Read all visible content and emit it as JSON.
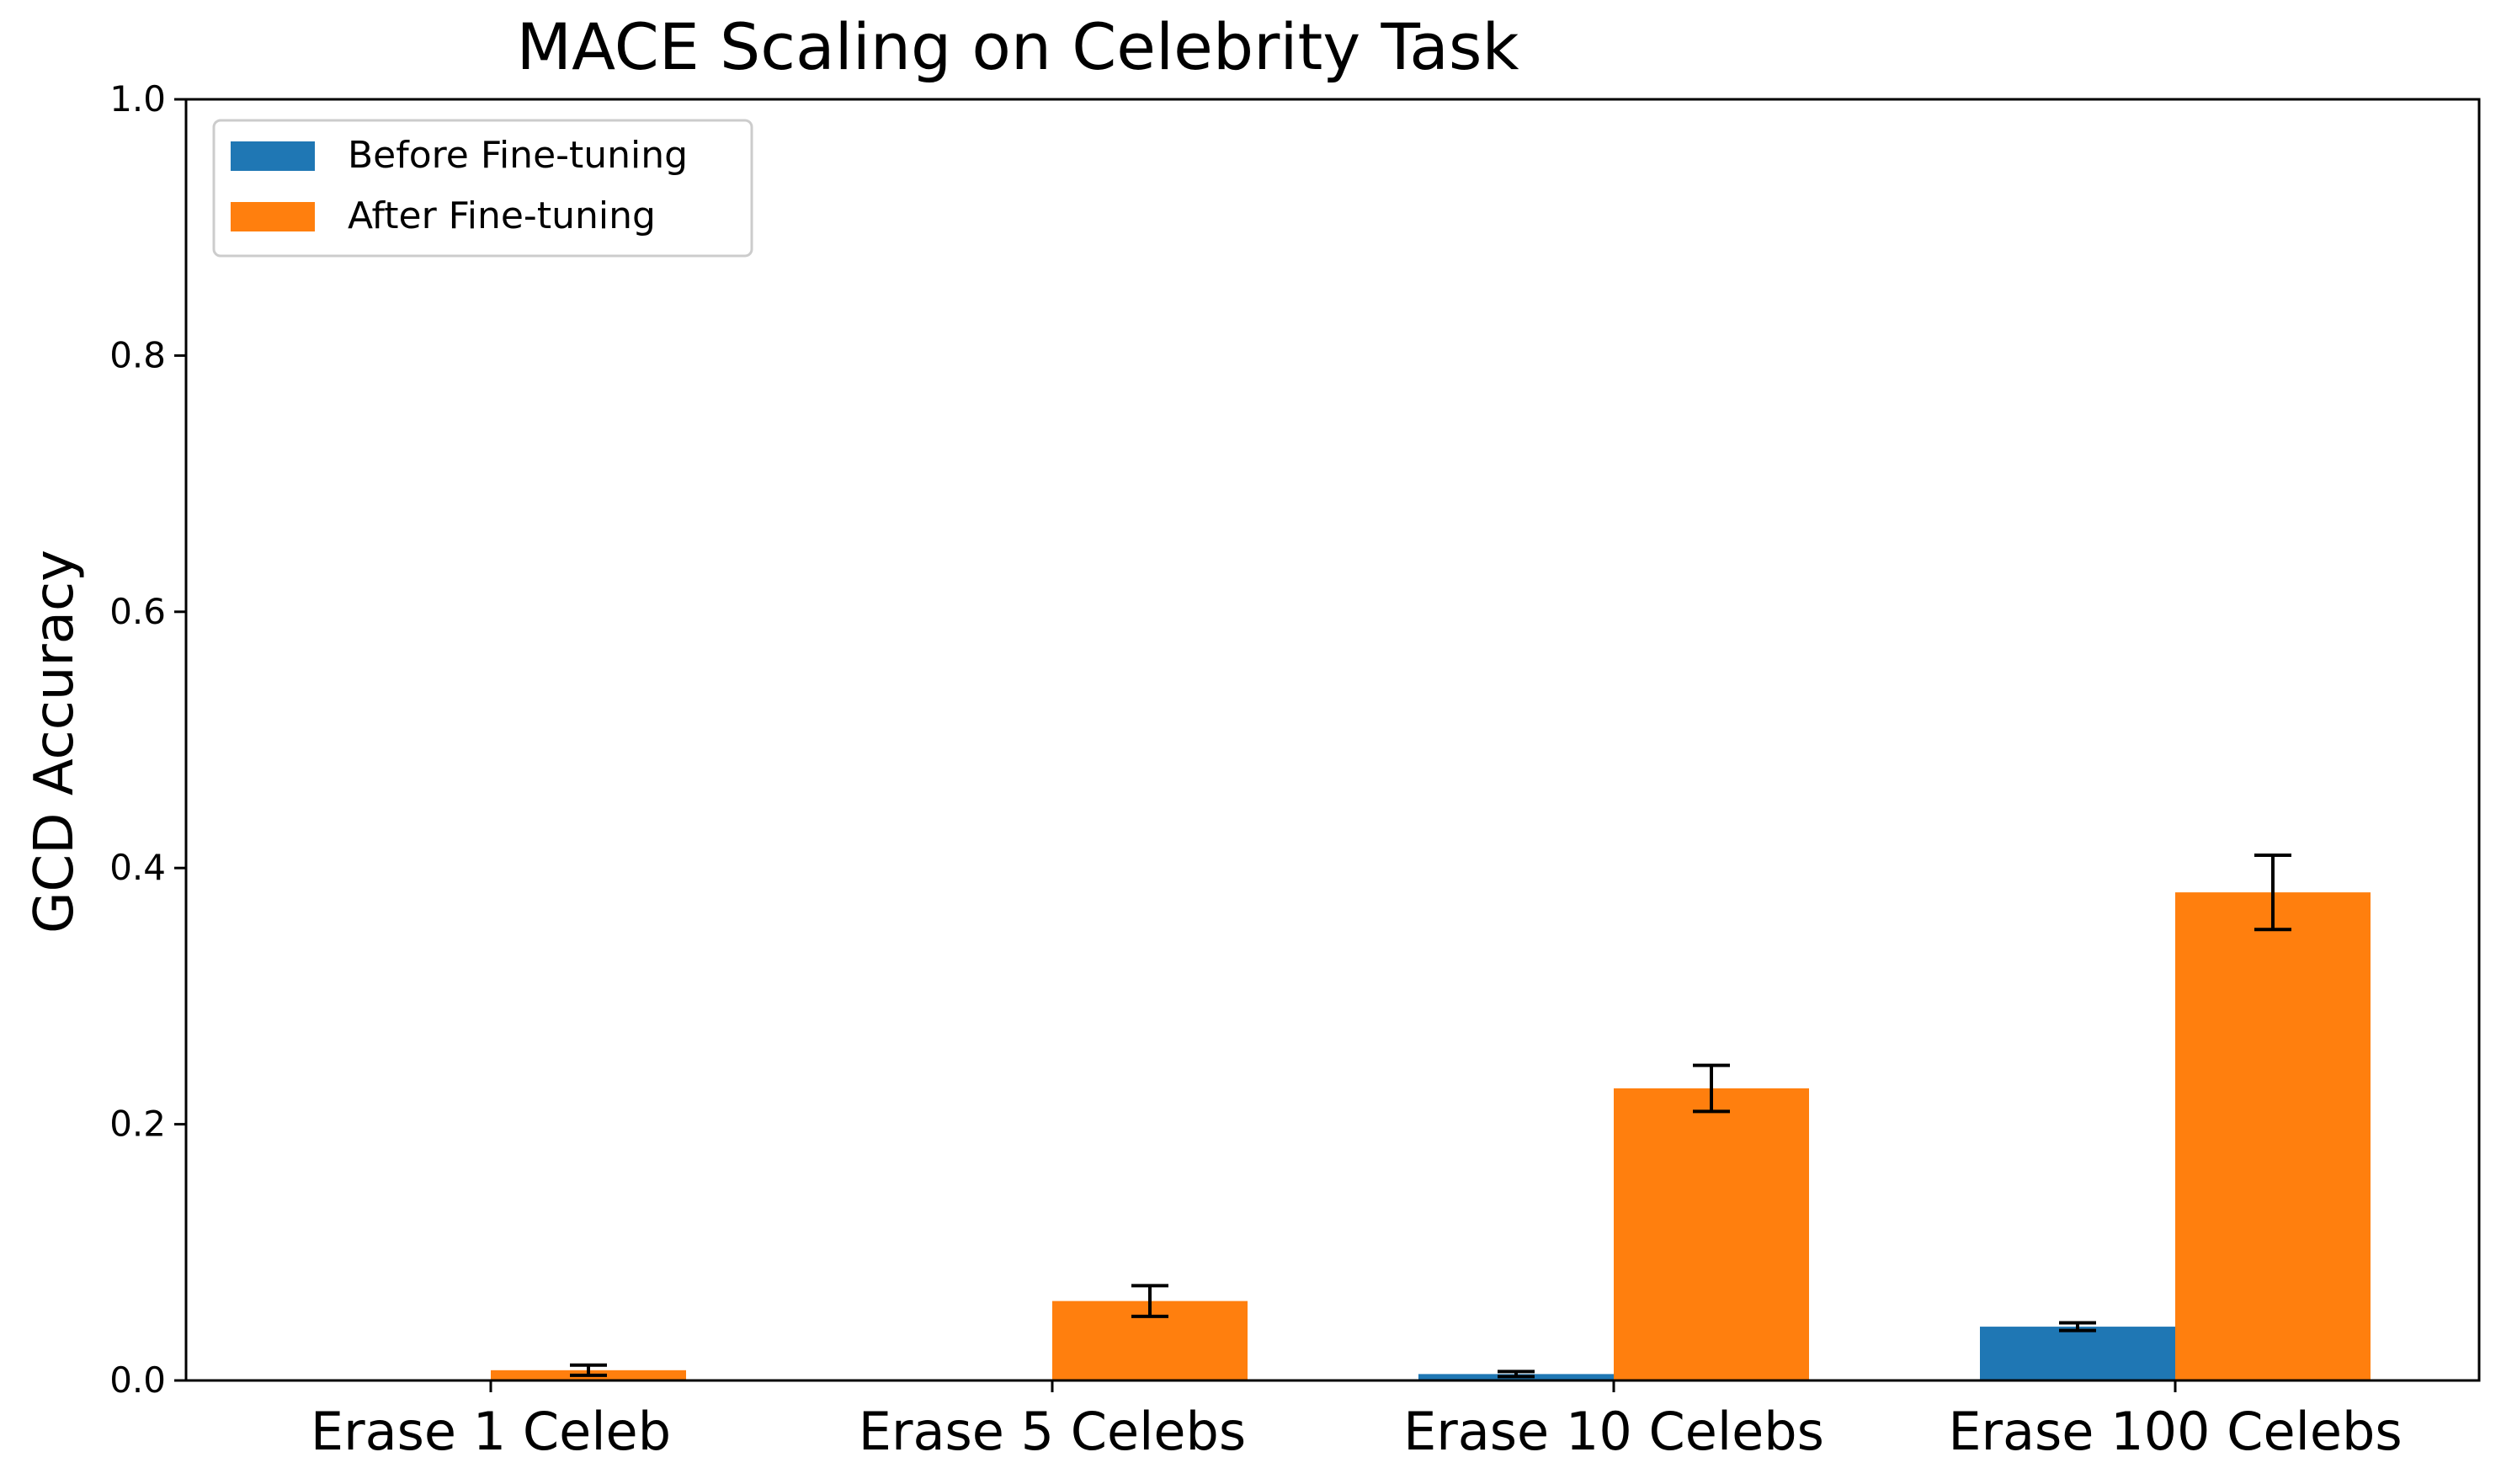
{
  "chart_data": {
    "type": "bar",
    "title": "MACE Scaling on Celebrity Task",
    "xlabel": "",
    "ylabel": "GCD Accuracy",
    "ylim": [
      0,
      1.0
    ],
    "yticks": [
      "0.0",
      "0.2",
      "0.4",
      "0.6",
      "0.8",
      "1.0"
    ],
    "categories": [
      "Erase 1 Celeb",
      "Erase 5 Celebs",
      "Erase 10 Celebs",
      "Erase 100 Celebs"
    ],
    "series": [
      {
        "name": "Before Fine-tuning",
        "color": "#1f77b4",
        "values": [
          0.0,
          0.0,
          0.005,
          0.042
        ],
        "errors": [
          0.0,
          0.0,
          0.002,
          0.003
        ]
      },
      {
        "name": "After Fine-tuning",
        "color": "#ff7f0e",
        "values": [
          0.008,
          0.062,
          0.228,
          0.381
        ],
        "errors": [
          0.004,
          0.012,
          0.018,
          0.029
        ]
      }
    ],
    "legend": "top-left",
    "grid": false
  }
}
